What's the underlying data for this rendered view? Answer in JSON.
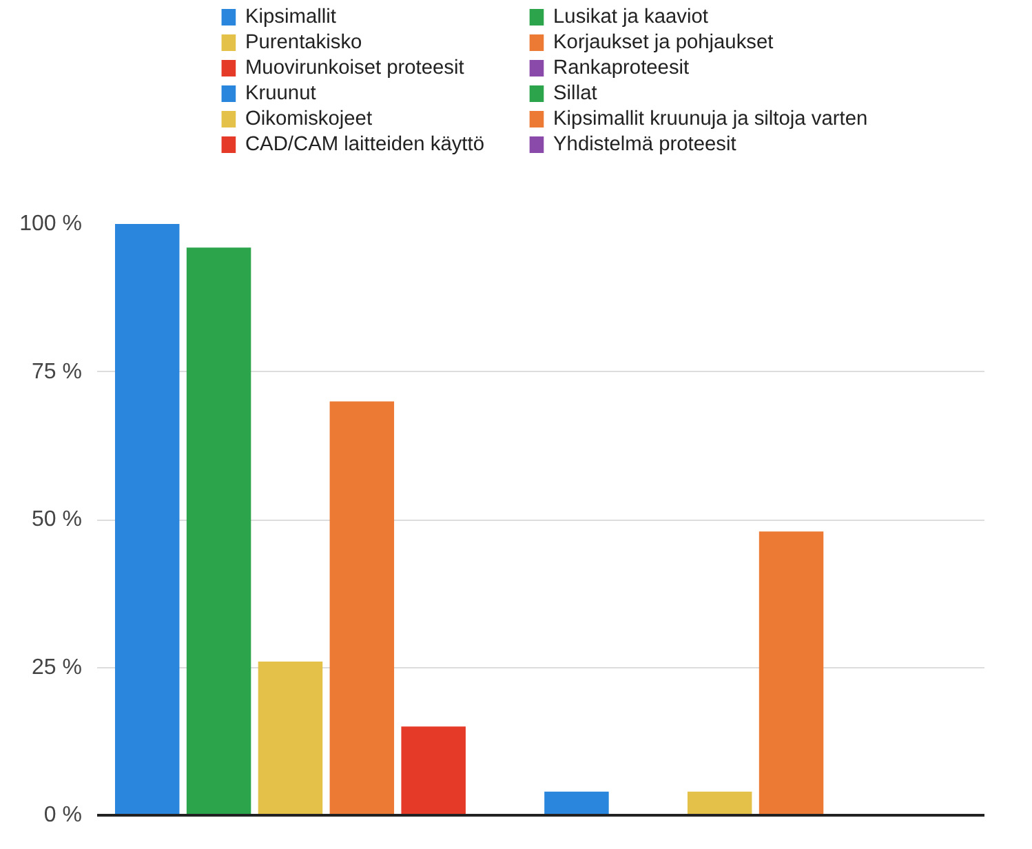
{
  "chart_data": {
    "type": "bar",
    "categories": [
      null
    ],
    "ylim": [
      0,
      100
    ],
    "yticks": [
      {
        "value": 0,
        "label": "0 %"
      },
      {
        "value": 25,
        "label": "25 %"
      },
      {
        "value": 50,
        "label": "50 %"
      },
      {
        "value": 75,
        "label": "75 %"
      },
      {
        "value": 100,
        "label": "100 %"
      }
    ],
    "grid": "y",
    "legend": "top",
    "tick_labels": "y",
    "series": [
      {
        "name": "Kipsimallit",
        "color": "#2a86dc",
        "values": [
          100
        ]
      },
      {
        "name": "Lusikat ja kaaviot",
        "color": "#2ca44c",
        "values": [
          96
        ]
      },
      {
        "name": "Purentakisko",
        "color": "#e4c24a",
        "values": [
          26
        ]
      },
      {
        "name": "Korjaukset ja pohjaukset",
        "color": "#ec7a34",
        "values": [
          70
        ]
      },
      {
        "name": "Muovirunkoiset proteesit",
        "color": "#e63a28",
        "values": [
          15
        ]
      },
      {
        "name": "Rankaproteesit",
        "color": "#8a4aaa",
        "values": [
          0
        ]
      },
      {
        "name": "Kruunut",
        "color": "#2a86dc",
        "values": [
          4
        ]
      },
      {
        "name": "Sillat",
        "color": "#2ca44c",
        "values": [
          0
        ]
      },
      {
        "name": "Oikomiskojeet",
        "color": "#e4c24a",
        "values": [
          4
        ]
      },
      {
        "name": "Kipsimallit kruunuja ja siltoja varten",
        "color": "#ec7a34",
        "values": [
          48
        ]
      },
      {
        "name": "CAD/CAM laitteiden käyttö",
        "color": "#e63a28",
        "values": [
          0
        ]
      },
      {
        "name": "Yhdistelmä proteesit",
        "color": "#8a4aaa",
        "values": [
          0
        ]
      }
    ]
  }
}
